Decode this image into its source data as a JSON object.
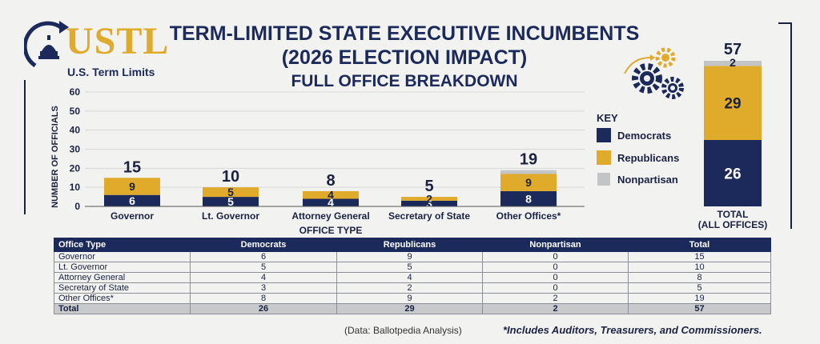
{
  "logo": {
    "word": "USTL",
    "subtitle": "U.S. Term Limits"
  },
  "title": {
    "line1": "TERM-LIMITED STATE EXECUTIVE INCUMBENTS",
    "line2": "(2026 ELECTION IMPACT)",
    "line3": "FULL OFFICE BREAKDOWN"
  },
  "colors": {
    "democrats": "#1b2a5a",
    "republicans": "#e0aa2a",
    "nonpartisan": "#c3c4c6"
  },
  "chart_data": [
    {
      "type": "bar",
      "stacked": true,
      "xlabel": "OFFICE TYPE",
      "ylabel": "NUMBER OF OFFICIALS",
      "ylim": [
        0,
        60
      ],
      "yticks": [
        0,
        10,
        20,
        30,
        40,
        50,
        60
      ],
      "categories": [
        "Governor",
        "Lt. Governor",
        "Attorney General",
        "Secretary of State",
        "Other Offices*"
      ],
      "series": [
        {
          "name": "Democrats",
          "values": [
            6,
            5,
            4,
            3,
            8
          ]
        },
        {
          "name": "Republicans",
          "values": [
            9,
            5,
            4,
            2,
            9
          ]
        },
        {
          "name": "Nonpartisan",
          "values": [
            0,
            0,
            0,
            0,
            2
          ]
        }
      ],
      "totals": [
        15,
        10,
        8,
        5,
        19
      ]
    },
    {
      "type": "bar",
      "stacked": true,
      "categories": [
        "TOTAL (ALL OFFICES)"
      ],
      "category_lines": [
        "TOTAL",
        "(ALL OFFICES)"
      ],
      "series": [
        {
          "name": "Democrats",
          "values": [
            26
          ]
        },
        {
          "name": "Republicans",
          "values": [
            29
          ]
        },
        {
          "name": "Nonpartisan",
          "values": [
            2
          ]
        }
      ],
      "totals": [
        57
      ]
    }
  ],
  "key": {
    "title": "KEY",
    "items": [
      {
        "label": "Democrats"
      },
      {
        "label": "Republicans"
      },
      {
        "label": "Nonpartisan"
      }
    ]
  },
  "table": {
    "headers": [
      "Office Type",
      "Democrats",
      "Republicans",
      "Nonpartisan",
      "Total"
    ],
    "rows": [
      [
        "Governor",
        "6",
        "9",
        "0",
        "15"
      ],
      [
        "Lt. Governor",
        "5",
        "5",
        "0",
        "10"
      ],
      [
        "Attorney General",
        "4",
        "4",
        "0",
        "8"
      ],
      [
        "Secretary of State",
        "3",
        "2",
        "0",
        "5"
      ],
      [
        "Other Offices*",
        "8",
        "9",
        "2",
        "19"
      ]
    ],
    "total_row": [
      "Total",
      "26",
      "29",
      "2",
      "57"
    ]
  },
  "source": "(Data: Ballotpedia Analysis)",
  "footnote": "*Includes Auditors, Treasurers, and Commissioners."
}
